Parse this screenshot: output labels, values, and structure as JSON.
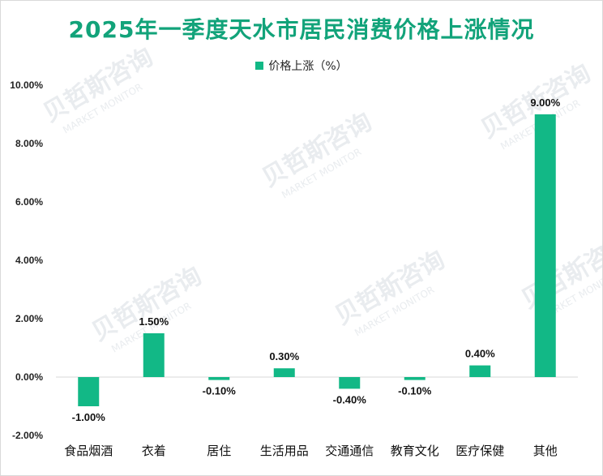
{
  "chart_data": {
    "type": "bar",
    "title": "2025年一季度天水市居民消费价格上涨情况",
    "legend": [
      "价格上涨（%）"
    ],
    "categories": [
      "食品烟酒",
      "衣着",
      "居住",
      "生活用品",
      "交通通信",
      "教育文化",
      "医疗保健",
      "其他"
    ],
    "values": [
      -1.0,
      1.5,
      -0.1,
      0.3,
      -0.4,
      -0.1,
      0.4,
      9.0
    ],
    "data_labels": [
      "-1.00%",
      "1.50%",
      "-0.10%",
      "0.30%",
      "-0.40%",
      "-0.10%",
      "0.40%",
      "9.00%"
    ],
    "yticks": [
      "10.00%",
      "8.00%",
      "6.00%",
      "4.00%",
      "2.00%",
      "0.00%",
      "-2.00%"
    ],
    "ylim": [
      -2,
      10
    ],
    "xlabel": "",
    "ylabel": "",
    "bar_color": "#12b886",
    "title_color": "#12a37a"
  },
  "watermark": {
    "brand": "贝哲斯咨询",
    "sub": "MARKET MONITOR"
  }
}
